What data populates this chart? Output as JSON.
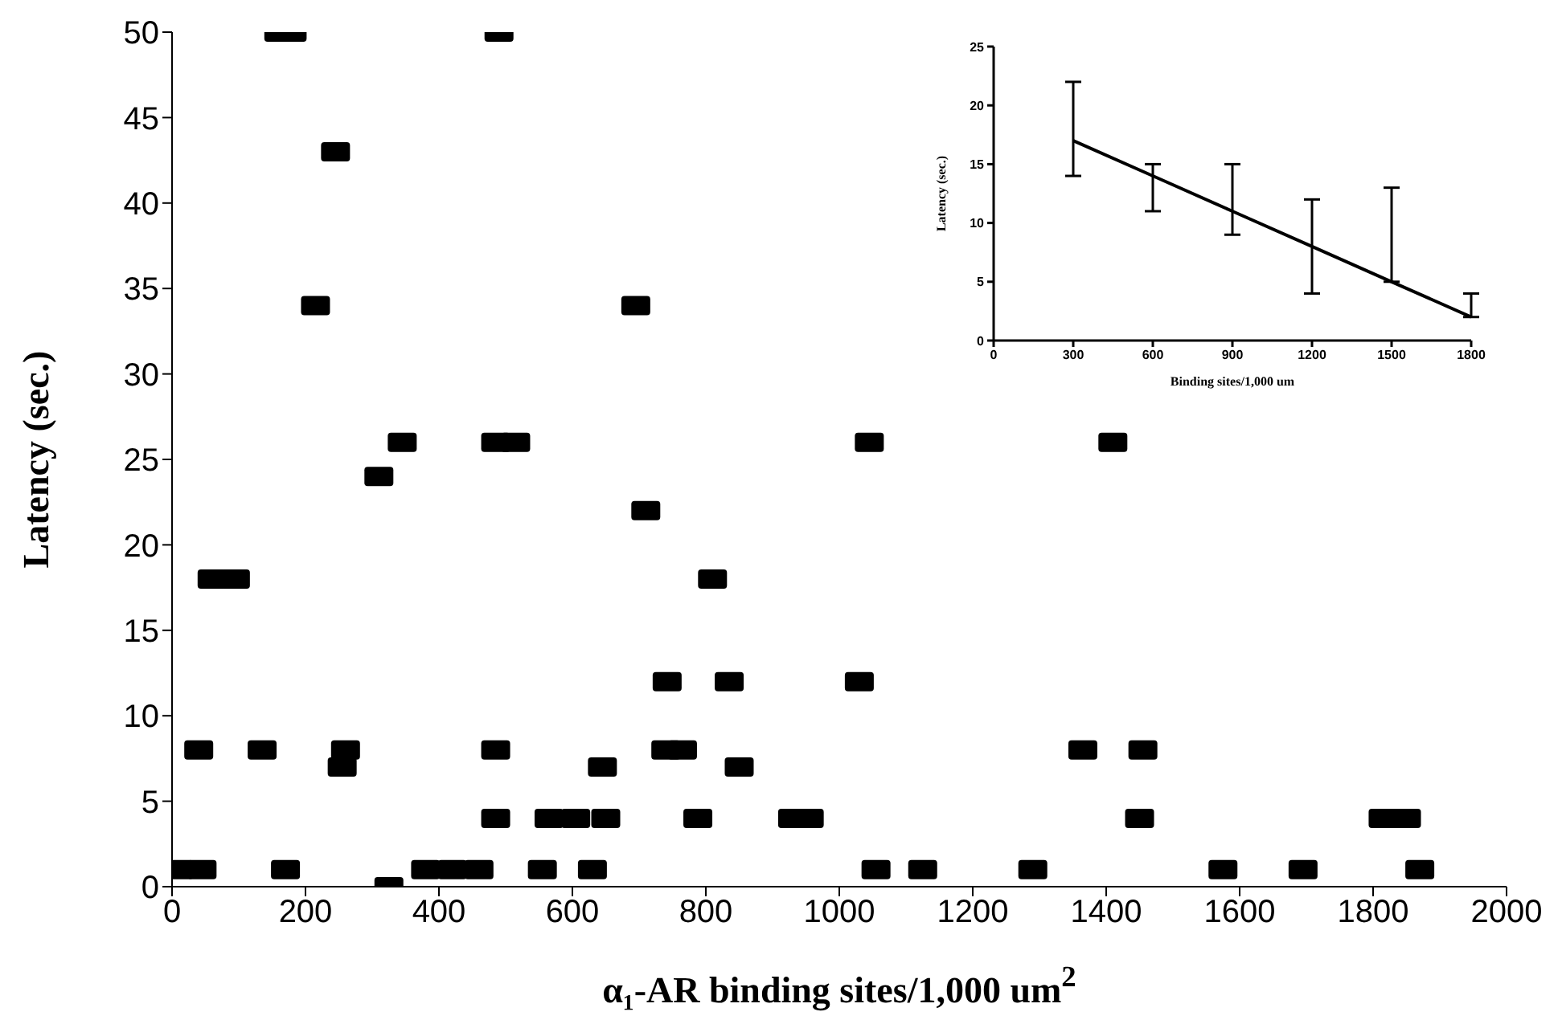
{
  "chart_data": [
    {
      "type": "scatter",
      "xlabel": "α₁-AR binding sites/1,000 um$^{2}$",
      "ylabel": "Latency (sec.)",
      "marker": "square",
      "color": "#000000",
      "x": [
        10,
        45,
        170,
        380,
        420,
        460,
        555,
        630,
        1055,
        1125,
        1290,
        1575,
        1695,
        1870,
        325,
        485,
        565,
        605,
        650,
        788,
        930,
        955,
        1450,
        1815,
        1850,
        255,
        645,
        850,
        40,
        135,
        260,
        485,
        740,
        765,
        1365,
        1455,
        742,
        835,
        1030,
        60,
        95,
        810,
        710,
        310,
        345,
        485,
        515,
        1045,
        1410,
        215,
        695,
        245,
        160,
        180,
        490
      ],
      "values": [
        1,
        1,
        1,
        1,
        1,
        1,
        1,
        1,
        1,
        1,
        1,
        1,
        1,
        1,
        0,
        4,
        4,
        4,
        4,
        4,
        4,
        4,
        4,
        4,
        4,
        7,
        7,
        7,
        8,
        8,
        8,
        8,
        8,
        8,
        8,
        8,
        12,
        12,
        12,
        18,
        18,
        18,
        22,
        24,
        26,
        26,
        26,
        26,
        26,
        34,
        34,
        43,
        50,
        50,
        50
      ],
      "xlim": [
        0,
        2000
      ],
      "xticks": [
        0,
        200,
        400,
        600,
        800,
        1000,
        1200,
        1400,
        1600,
        1800,
        2000
      ],
      "ylim": [
        0,
        50
      ],
      "yticks": [
        0,
        5,
        10,
        15,
        20,
        25,
        30,
        35,
        40,
        45,
        50
      ]
    },
    {
      "type": "line",
      "xlabel": "Binding sites/1,000 um",
      "ylabel": "Latency (sec.)",
      "color": "#000000",
      "x": [
        300,
        600,
        900,
        1200,
        1500,
        1800
      ],
      "values": [
        17,
        14,
        11,
        8,
        5,
        2
      ],
      "errors": [
        [
          14,
          22
        ],
        [
          11,
          15
        ],
        [
          9,
          15
        ],
        [
          4,
          12
        ],
        [
          5,
          13
        ],
        [
          2,
          4
        ]
      ],
      "xlim": [
        0,
        1800
      ],
      "xticks": [
        0,
        300,
        600,
        900,
        1200,
        1500,
        1800
      ],
      "ylim": [
        0,
        25
      ],
      "yticks": [
        0,
        5,
        10,
        15,
        20,
        25
      ]
    }
  ]
}
